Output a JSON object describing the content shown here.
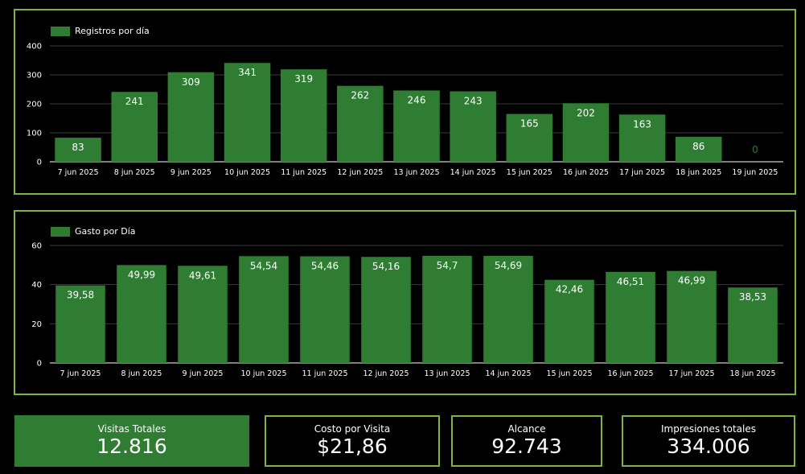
{
  "charts": {
    "registros": {
      "legend": "Registros por día",
      "colors": {
        "bar": "#2e7d32",
        "grid": "#3a3a3a",
        "axis": "#ffffff"
      }
    },
    "gasto": {
      "legend": "Gasto por Día",
      "colors": {
        "bar": "#2e7d32",
        "grid": "#3a3a3a",
        "axis": "#ffffff"
      }
    }
  },
  "chart_data": [
    {
      "type": "bar",
      "title": "",
      "series": [
        {
          "name": "Registros por día",
          "values": [
            83,
            241,
            309,
            341,
            319,
            262,
            246,
            243,
            165,
            202,
            163,
            86,
            0
          ]
        }
      ],
      "categories": [
        "7 jun 2025",
        "8 jun 2025",
        "9 jun 2025",
        "10 jun 2025",
        "11 jun 2025",
        "12 jun 2025",
        "13 jun 2025",
        "14 jun 2025",
        "15 jun 2025",
        "16 jun 2025",
        "17 jun 2025",
        "18 jun 2025",
        "19 jun 2025"
      ],
      "data_labels": [
        "83",
        "241",
        "309",
        "341",
        "319",
        "262",
        "246",
        "243",
        "165",
        "202",
        "163",
        "86",
        "0"
      ],
      "yticks": [
        "0",
        "100",
        "200",
        "300",
        "400"
      ],
      "ylim": [
        0,
        400
      ],
      "grid": true,
      "legend_position": "top-left"
    },
    {
      "type": "bar",
      "title": "",
      "series": [
        {
          "name": "Gasto por Día",
          "values": [
            39.58,
            49.99,
            49.61,
            54.54,
            54.46,
            54.16,
            54.7,
            54.69,
            42.46,
            46.51,
            46.99,
            38.53
          ]
        }
      ],
      "categories": [
        "7 jun 2025",
        "8 jun 2025",
        "9 jun 2025",
        "10 jun 2025",
        "11 jun 2025",
        "12 jun 2025",
        "13 jun 2025",
        "14 jun 2025",
        "15 jun 2025",
        "16 jun 2025",
        "17 jun 2025",
        "18 jun 2025"
      ],
      "data_labels": [
        "39,58",
        "49,99",
        "49,61",
        "54,54",
        "54,46",
        "54,16",
        "54,7",
        "54,69",
        "42,46",
        "46,51",
        "46,99",
        "38,53"
      ],
      "yticks": [
        "0",
        "20",
        "40",
        "60"
      ],
      "ylim": [
        0,
        60
      ],
      "grid": true,
      "legend_position": "top-left"
    }
  ],
  "kpis": {
    "visitas": {
      "label": "Visitas Totales",
      "value": "12.816",
      "bg": "#2e7d32"
    },
    "costo": {
      "label": "Costo por Visita",
      "value": "$21,86"
    },
    "alcance": {
      "label": "Alcance",
      "value": "92.743"
    },
    "impresiones": {
      "label": "Impresiones totales",
      "value": "334.006"
    }
  }
}
